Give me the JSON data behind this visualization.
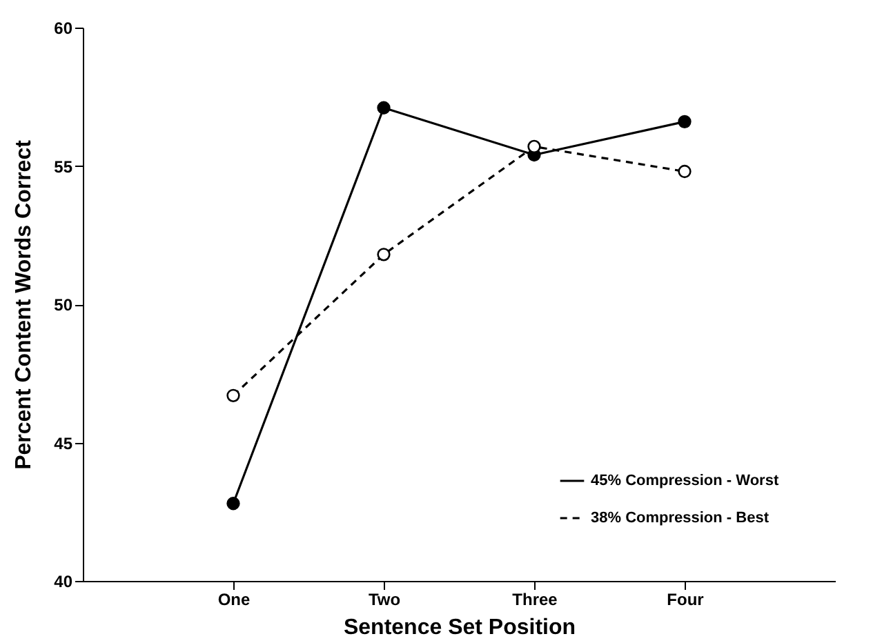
{
  "chart_data": {
    "type": "line",
    "xlabel": "Sentence Set Position",
    "ylabel": "Percent Content Words Correct",
    "categories": [
      "One",
      "Two",
      "Three",
      "Four"
    ],
    "series": [
      {
        "name": "45% Compression - Worst",
        "color": "#000000",
        "line_style": "solid",
        "values": [
          42.8,
          57.1,
          55.4,
          56.6
        ]
      },
      {
        "name": "38% Compression - Best",
        "color": "#000000",
        "line_style": "dashed",
        "values": [
          46.7,
          51.8,
          55.7,
          54.8
        ]
      }
    ],
    "ylim": [
      40,
      60
    ],
    "yticks": [
      40,
      45,
      50,
      55,
      60
    ],
    "marker": "circle",
    "legend": "bottom right",
    "grid": false
  }
}
